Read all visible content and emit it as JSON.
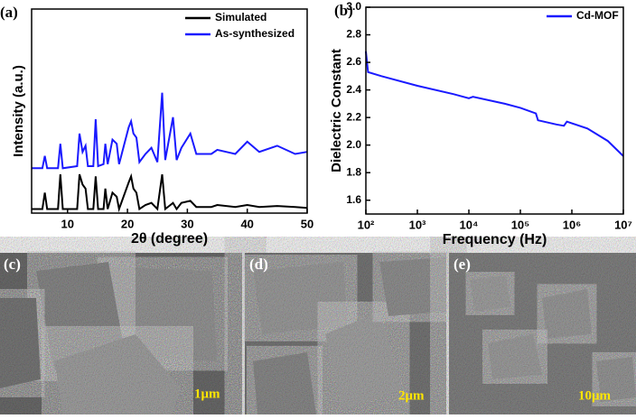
{
  "chart_data": [
    {
      "type": "line",
      "panel_label": "(a)",
      "xlabel": "2θ (degree)",
      "ylabel": "Intensity (a.u.)",
      "x": [
        4,
        5.8,
        6.2,
        6.6,
        8.4,
        8.8,
        9.2,
        11.6,
        12,
        12.5,
        13,
        13.4,
        14.3,
        14.7,
        15.1,
        16,
        16.3,
        16.7,
        17.5,
        18.2,
        18.6,
        20.2,
        20.6,
        21,
        21.5,
        22,
        23,
        24,
        25,
        25.8,
        26.3,
        27.6,
        28.2,
        29,
        30.5,
        31.5,
        34,
        35,
        38,
        40,
        42,
        45,
        48,
        50
      ],
      "series": [
        {
          "name": "Simulated",
          "color": "#000000",
          "values": [
            0.2,
            0.2,
            1.0,
            0.2,
            0.2,
            1.9,
            0.2,
            0.2,
            1.9,
            1.4,
            1.2,
            0.2,
            0.2,
            1.8,
            0.2,
            0.2,
            1.2,
            0.2,
            1.0,
            0.8,
            0.2,
            1.5,
            1.8,
            1.2,
            1.0,
            0.2,
            0.4,
            0.5,
            0.2,
            1.9,
            0.2,
            0.5,
            0.2,
            0.5,
            0.6,
            0.3,
            0.3,
            0.4,
            0.3,
            0.4,
            0.3,
            0.35,
            0.3,
            0.25
          ]
        },
        {
          "name": "As-synthesized",
          "color": "#1a1aff",
          "values": [
            2.2,
            2.2,
            2.8,
            2.2,
            2.2,
            3.4,
            2.2,
            2.3,
            3.9,
            3.0,
            3.3,
            2.3,
            2.3,
            4.6,
            2.3,
            2.4,
            3.4,
            2.4,
            3.6,
            3.4,
            2.4,
            4.2,
            4.5,
            3.9,
            3.7,
            2.5,
            2.9,
            3.2,
            2.5,
            5.9,
            2.6,
            4.7,
            2.6,
            3.2,
            3.9,
            2.9,
            2.9,
            3.1,
            2.9,
            3.5,
            3.0,
            3.3,
            2.9,
            3.0
          ]
        }
      ],
      "xlim": [
        4,
        50
      ],
      "xticks": [
        10,
        20,
        30,
        40,
        50
      ],
      "ylim": [
        0,
        10
      ],
      "legend": "upper right"
    },
    {
      "type": "line",
      "panel_label": "(b)",
      "xlabel": "Frequency (Hz)",
      "ylabel": "Dielectric Constant",
      "xlog": true,
      "x": [
        100,
        110,
        200,
        1000,
        5000,
        10000,
        12000,
        50000,
        100000,
        200000,
        220000,
        500000,
        700000,
        800000,
        2000000,
        5000000,
        10000000
      ],
      "series": [
        {
          "name": "Cd-MOF",
          "color": "#1a1aff",
          "values": [
            2.68,
            2.53,
            2.5,
            2.43,
            2.37,
            2.34,
            2.35,
            2.3,
            2.27,
            2.23,
            2.18,
            2.15,
            2.14,
            2.17,
            2.12,
            2.03,
            1.92
          ]
        }
      ],
      "xlim": [
        100,
        10000000
      ],
      "xticks": [
        {
          "value": 100,
          "label": "10²"
        },
        {
          "value": 1000,
          "label": "10³"
        },
        {
          "value": 10000,
          "label": "10⁴"
        },
        {
          "value": 100000,
          "label": "10⁵"
        },
        {
          "value": 1000000,
          "label": "10⁶"
        },
        {
          "value": 10000000,
          "label": "10⁷"
        }
      ],
      "ylim": [
        1.5,
        3.0
      ],
      "yticks": [
        1.6,
        1.8,
        {
          "value": 2,
          "label": "2.0"
        },
        2.2,
        2.4,
        2.6,
        2.8,
        {
          "value": 3,
          "label": "3.0"
        }
      ],
      "legend": "upper right"
    }
  ],
  "images": [
    {
      "label": "(c)",
      "scale_bar": "1μm"
    },
    {
      "label": "(d)",
      "scale_bar": "2μm"
    },
    {
      "label": "(e)",
      "scale_bar": "10μm"
    }
  ]
}
